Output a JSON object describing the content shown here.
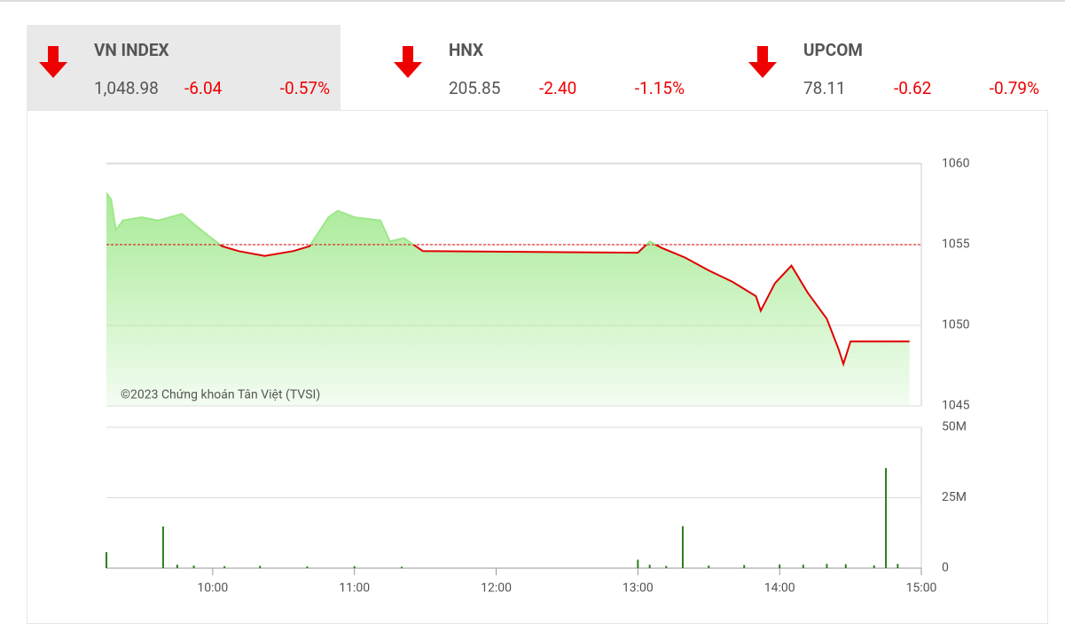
{
  "tabs": [
    {
      "name": "VN INDEX",
      "value": "1,048.98",
      "change": "-6.04",
      "percent": "-0.57%"
    },
    {
      "name": "HNX",
      "value": "205.85",
      "change": "-2.40",
      "percent": "-1.15%"
    },
    {
      "name": "UPCOM",
      "value": "78.11",
      "change": "-0.62",
      "percent": "-0.79%"
    }
  ],
  "chart_data": [
    {
      "type": "line",
      "copyright": "©2023 Chứng khoán Tân Việt (TVSI)",
      "x": [
        "09:15",
        "09:17",
        "09:19",
        "09:22",
        "09:30",
        "09:37",
        "09:47",
        "09:56",
        "10:04",
        "10:11",
        "10:22",
        "10:34",
        "10:41",
        "10:49",
        "10:53",
        "11:00",
        "11:11",
        "11:15",
        "11:21",
        "11:29",
        "13:00",
        "13:05",
        "13:10",
        "13:20",
        "13:30",
        "13:40",
        "13:50",
        "13:52",
        "13:58",
        "14:05",
        "14:12",
        "14:20",
        "14:25",
        "14:27",
        "14:30",
        "14:55"
      ],
      "values": [
        1058.2,
        1057.8,
        1055.9,
        1056.5,
        1056.7,
        1056.5,
        1056.9,
        1055.8,
        1054.9,
        1054.6,
        1054.3,
        1054.6,
        1054.9,
        1056.7,
        1057.1,
        1056.7,
        1056.5,
        1055.2,
        1055.4,
        1054.6,
        1054.5,
        1055.2,
        1054.8,
        1054.2,
        1053.4,
        1052.7,
        1051.8,
        1050.9,
        1052.6,
        1053.7,
        1052.0,
        1050.4,
        1048.5,
        1047.6,
        1049.0,
        1049.0
      ],
      "reference": 1055,
      "color": "#e00000",
      "area_color": "#9de88a",
      "xlim": [
        "09:15",
        "15:00"
      ],
      "ylim": [
        1045,
        1060
      ],
      "yticks": [
        1045,
        1050,
        1055,
        1060
      ]
    },
    {
      "type": "bar",
      "color": "#2e7d1e",
      "x": [
        "09:15",
        "09:39",
        "09:45",
        "09:52",
        "10:05",
        "10:20",
        "10:40",
        "11:00",
        "11:20",
        "13:00",
        "13:05",
        "13:12",
        "13:19",
        "13:30",
        "13:45",
        "14:00",
        "14:10",
        "14:20",
        "14:28",
        "14:40",
        "14:45",
        "14:50"
      ],
      "values": [
        5700000,
        14800000,
        1200000,
        900000,
        700000,
        800000,
        600000,
        700000,
        500000,
        3000000,
        1200000,
        800000,
        14900000,
        900000,
        1100000,
        1300000,
        1200000,
        1500000,
        1400000,
        1000000,
        35500000,
        1500000
      ],
      "xlim": [
        "09:15",
        "15:00"
      ],
      "ylim": [
        0,
        50000000
      ],
      "yticks": [
        0,
        {
          "value": 25000000,
          "label": "25M"
        },
        {
          "value": 50000000,
          "label": "50M"
        }
      ],
      "xticks": [
        "10:00",
        "11:00",
        "12:00",
        "13:00",
        "14:00",
        "15:00"
      ]
    }
  ]
}
